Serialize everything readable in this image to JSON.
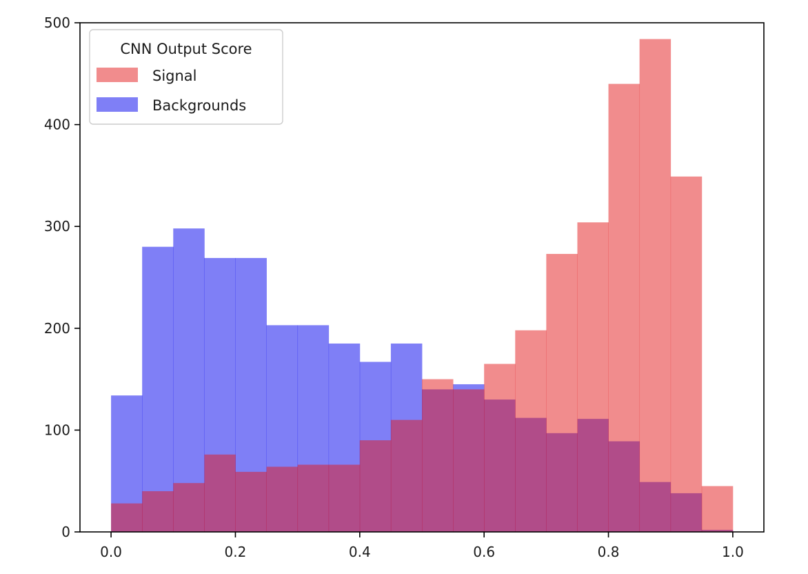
{
  "chart_data": {
    "type": "histogram",
    "title": "",
    "xlabel": "",
    "ylabel": "",
    "xlim": [
      -0.05,
      1.05
    ],
    "ylim": [
      0,
      500
    ],
    "x_ticks": [
      0.0,
      0.2,
      0.4,
      0.6,
      0.8,
      1.0
    ],
    "x_tick_labels": [
      "0.0",
      "0.2",
      "0.4",
      "0.6",
      "0.8",
      "1.0"
    ],
    "y_ticks": [
      0,
      100,
      200,
      300,
      400,
      500
    ],
    "y_tick_labels": [
      "0",
      "100",
      "200",
      "300",
      "400",
      "500"
    ],
    "bin_edges": [
      0.0,
      0.05,
      0.1,
      0.15,
      0.2,
      0.25,
      0.3,
      0.35,
      0.4,
      0.45,
      0.5,
      0.55,
      0.6,
      0.65,
      0.7,
      0.75,
      0.8,
      0.85,
      0.9,
      0.95,
      1.0
    ],
    "grid": false,
    "legend": {
      "title": "CNN Output Score",
      "position": "upper-left"
    },
    "series": [
      {
        "name": "Backgrounds",
        "color": "#0000ee",
        "opacity": 0.5,
        "values": [
          134,
          280,
          298,
          269,
          269,
          203,
          203,
          185,
          167,
          185,
          140,
          145,
          130,
          112,
          97,
          111,
          89,
          49,
          38,
          2
        ]
      },
      {
        "name": "Signal",
        "color": "#e41a1c",
        "opacity": 0.5,
        "values": [
          28,
          40,
          48,
          76,
          59,
          64,
          66,
          66,
          90,
          110,
          150,
          140,
          165,
          198,
          273,
          304,
          440,
          484,
          349,
          45
        ]
      }
    ]
  }
}
